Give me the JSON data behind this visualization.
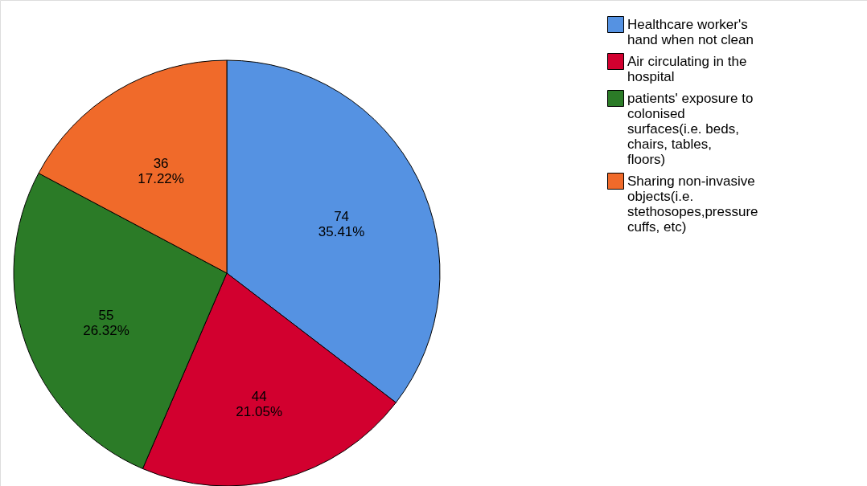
{
  "chart_data": {
    "type": "pie",
    "categories": [
      "Healthcare worker's hand when not clean",
      "Air circulating in the hospital",
      "patients' exposure to colonised surfaces(i.e. beds, chairs, tables, floors)",
      "Sharing non-invasive objects(i.e. stethosopes,pressure cuffs, etc)"
    ],
    "values": [
      74,
      44,
      55,
      36
    ],
    "colors": [
      "#5592e2",
      "#d2002f",
      "#2b7b27",
      "#f06a2a"
    ],
    "value_labels": [
      "74\n35.41%",
      "44\n21.05%",
      "55\n26.32%",
      "36\n17.22%"
    ],
    "legend": "top right"
  }
}
